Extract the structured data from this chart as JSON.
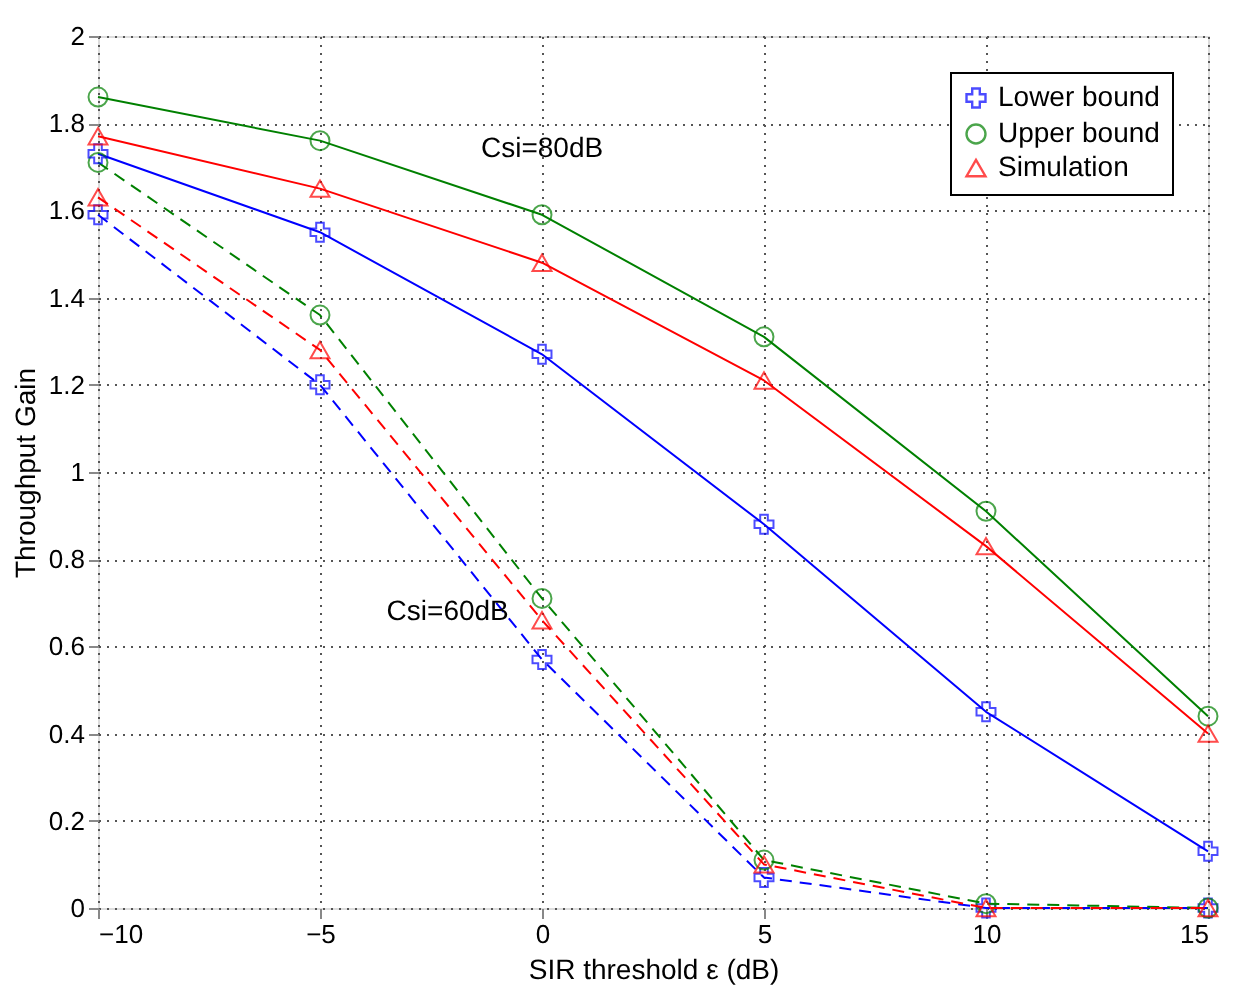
{
  "chart_data": {
    "type": "line",
    "xlabel": "SIR threshold ε (dB)",
    "ylabel": "Throughput Gain",
    "x": [
      -10,
      -5,
      0,
      5,
      10,
      15
    ],
    "series": [
      {
        "name": "Lower bound",
        "color": "#0000ff",
        "marker": "cross",
        "line_style": "solid",
        "values": [
          1.73,
          1.55,
          1.27,
          0.88,
          0.45,
          0.13
        ]
      },
      {
        "name": "Upper bound",
        "color": "#008000",
        "marker": "circle",
        "line_style": "solid",
        "values": [
          1.86,
          1.76,
          1.59,
          1.31,
          0.91,
          0.44
        ]
      },
      {
        "name": "Simulation",
        "color": "#ff0000",
        "marker": "triangle",
        "line_style": "solid",
        "values": [
          1.77,
          1.65,
          1.48,
          1.21,
          0.83,
          0.4
        ]
      },
      {
        "color": "#0000ff",
        "marker": "cross",
        "line_style": "dashed",
        "values": [
          1.59,
          1.2,
          0.57,
          0.07,
          0.0,
          0.0
        ]
      },
      {
        "color": "#008000",
        "marker": "circle",
        "line_style": "dashed",
        "values": [
          1.71,
          1.36,
          0.71,
          0.11,
          0.01,
          0.0
        ]
      },
      {
        "color": "#ff0000",
        "marker": "triangle",
        "line_style": "dashed",
        "values": [
          1.63,
          1.28,
          0.66,
          0.1,
          0.0,
          0.0
        ]
      }
    ],
    "xlim": [
      -10,
      15
    ],
    "xticks": [
      -10,
      -5,
      0,
      5,
      10,
      15
    ],
    "ylim": [
      0,
      2
    ],
    "yticks": [
      0,
      0.2,
      0.4,
      0.6,
      0.8,
      1,
      1.2,
      1.4,
      1.6,
      1.8,
      2
    ],
    "grid": true,
    "legend": "top right",
    "annotations": [
      "Csi=80dB",
      "Csi=60dB"
    ]
  }
}
